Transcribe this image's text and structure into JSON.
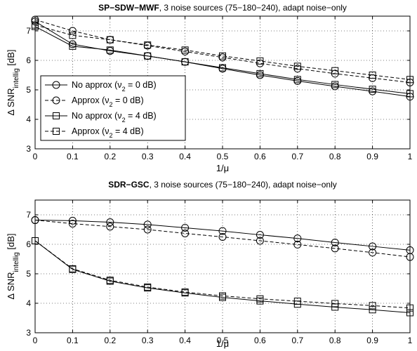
{
  "chart_data": [
    {
      "type": "line",
      "title_bold": "SP−SDW−MWF",
      "title_rest": ", 3 noise sources (75−180−240), adapt noise−only",
      "xlabel": "1/μ",
      "ylabel_main": "Δ SNR",
      "ylabel_sub": "intellig",
      "ylabel_unit": " [dB]",
      "xlim": [
        0,
        1
      ],
      "ylim": [
        3,
        7.5
      ],
      "xticks": [
        0,
        0.1,
        0.2,
        0.3,
        0.4,
        0.5,
        0.6,
        0.7,
        0.8,
        0.9,
        1
      ],
      "xtick_labels": [
        "0",
        "0.1",
        "0.2",
        "0.3",
        "0.4",
        "0.5",
        "0.6",
        "0.7",
        "0.8",
        "0.9",
        "1"
      ],
      "yticks": [
        3,
        4,
        5,
        6,
        7
      ],
      "ytick_labels": [
        "3",
        "4",
        "5",
        "6",
        "7"
      ],
      "grid": true,
      "legend_placement": "lower-left",
      "x": [
        0,
        0.1,
        0.2,
        0.3,
        0.4,
        0.5,
        0.6,
        0.7,
        0.8,
        0.9,
        1
      ],
      "series": [
        {
          "name": "No approx (ν₂ = 0 dB)",
          "legend_main": "No approx (ν",
          "legend_sub": "2",
          "legend_tail": " = 0 dB)",
          "marker": "circle",
          "dashed": false,
          "values": [
            7.32,
            6.55,
            6.32,
            6.15,
            5.95,
            5.72,
            5.5,
            5.3,
            5.12,
            4.95,
            4.77
          ]
        },
        {
          "name": "Approx (ν₂ = 0 dB)",
          "legend_main": "Approx (ν",
          "legend_sub": "2",
          "legend_tail": " = 0 dB)",
          "marker": "circle",
          "dashed": true,
          "values": [
            7.38,
            7.0,
            6.7,
            6.5,
            6.3,
            6.1,
            5.9,
            5.72,
            5.55,
            5.4,
            5.25
          ]
        },
        {
          "name": "No approx (ν₂ = 4 dB)",
          "legend_main": "No approx (ν",
          "legend_sub": "2",
          "legend_tail": " = 4 dB)",
          "marker": "square",
          "dashed": false,
          "values": [
            7.15,
            6.48,
            6.35,
            6.15,
            5.95,
            5.75,
            5.55,
            5.35,
            5.18,
            5.02,
            4.87
          ]
        },
        {
          "name": "Approx (ν₂ = 4 dB)",
          "legend_main": "Approx (ν",
          "legend_sub": "2",
          "legend_tail": " = 4 dB)",
          "marker": "square",
          "dashed": true,
          "values": [
            7.2,
            6.85,
            6.7,
            6.52,
            6.35,
            6.15,
            5.98,
            5.8,
            5.65,
            5.5,
            5.35
          ]
        }
      ]
    },
    {
      "type": "line",
      "title_bold": "SDR−GSC",
      "title_rest": ", 3 noise sources (75−180−240), adapt noise−only",
      "xlabel": "1/μ",
      "ylabel_main": "Δ SNR",
      "ylabel_sub": "intellig",
      "ylabel_unit": " [dB]",
      "xlim": [
        0,
        1
      ],
      "ylim": [
        3,
        7.5
      ],
      "xticks": [
        0,
        0.1,
        0.2,
        0.3,
        0.4,
        0.5,
        0.6,
        0.7,
        0.8,
        0.9,
        1
      ],
      "xtick_labels": [
        "0",
        "0.1",
        "0.2",
        "0.3",
        "0.4",
        "0.5",
        "0.6",
        "0.7",
        "0.8",
        "0.9",
        "1"
      ],
      "yticks": [
        3,
        4,
        5,
        6,
        7
      ],
      "ytick_labels": [
        "3",
        "4",
        "5",
        "6",
        "7"
      ],
      "grid": true,
      "x": [
        0,
        0.1,
        0.2,
        0.3,
        0.4,
        0.5,
        0.6,
        0.7,
        0.8,
        0.9,
        1
      ],
      "series": [
        {
          "marker": "circle",
          "dashed": false,
          "values": [
            6.82,
            6.8,
            6.75,
            6.67,
            6.56,
            6.45,
            6.32,
            6.2,
            6.06,
            5.93,
            5.8
          ]
        },
        {
          "marker": "circle",
          "dashed": true,
          "values": [
            6.82,
            6.7,
            6.6,
            6.5,
            6.37,
            6.25,
            6.12,
            5.99,
            5.86,
            5.72,
            5.57
          ]
        },
        {
          "marker": "square",
          "dashed": false,
          "values": [
            6.12,
            5.15,
            4.75,
            4.52,
            4.35,
            4.2,
            4.08,
            3.97,
            3.87,
            3.78,
            3.68
          ]
        },
        {
          "marker": "square",
          "dashed": true,
          "values": [
            6.12,
            5.17,
            4.78,
            4.55,
            4.38,
            4.25,
            4.15,
            4.07,
            3.99,
            3.92,
            3.84
          ]
        }
      ]
    }
  ]
}
